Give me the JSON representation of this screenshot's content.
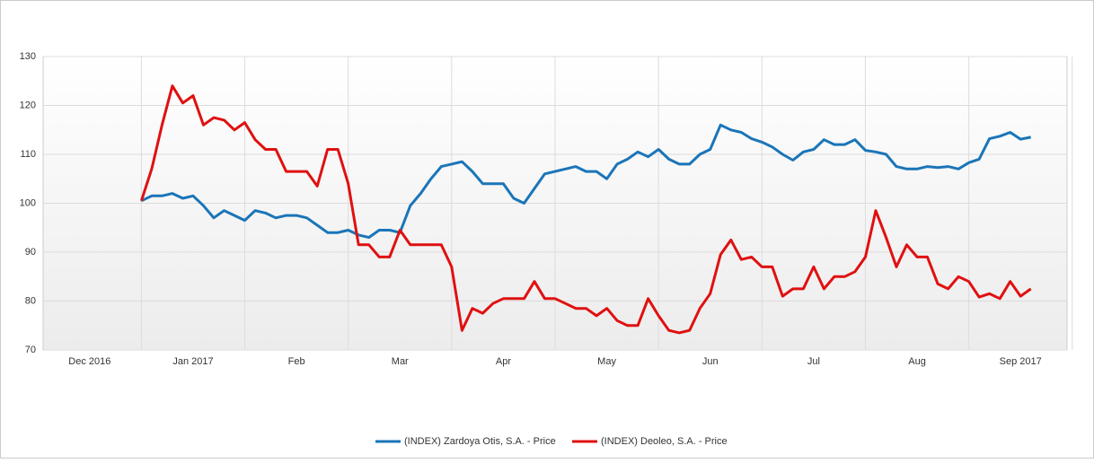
{
  "chart_data": {
    "type": "line",
    "categories": [
      null,
      null,
      null,
      null,
      "Dec 2016",
      null,
      null,
      null,
      null,
      null,
      null,
      null,
      null,
      null,
      "Jan 2017",
      null,
      null,
      null,
      null,
      null,
      null,
      null,
      null,
      null,
      "Feb",
      null,
      null,
      null,
      null,
      null,
      null,
      null,
      null,
      null,
      "Mar",
      null,
      null,
      null,
      null,
      null,
      null,
      null,
      null,
      null,
      "Apr",
      null,
      null,
      null,
      null,
      null,
      null,
      null,
      null,
      null,
      "May",
      null,
      null,
      null,
      null,
      null,
      null,
      null,
      null,
      null,
      "Jun",
      null,
      null,
      null,
      null,
      null,
      null,
      null,
      null,
      null,
      "Jul",
      null,
      null,
      null,
      null,
      null,
      null,
      null,
      null,
      null,
      "Aug",
      null,
      null,
      null,
      null,
      null,
      null,
      null,
      null,
      null,
      "Sep 2017",
      null,
      null,
      null,
      null
    ],
    "series": [
      {
        "name": "(INDEX) Zardoya Otis, S.A. - Price",
        "color": "#1a75b8",
        "values": [
          null,
          null,
          null,
          null,
          null,
          null,
          null,
          null,
          null,
          100.5,
          101.5,
          101.5,
          102,
          101,
          101.5,
          99.5,
          97,
          98.5,
          97.5,
          96.5,
          98.5,
          98,
          97,
          97.5,
          97.5,
          97,
          95.5,
          94,
          94,
          94.5,
          93.5,
          93,
          94.5,
          94.5,
          94,
          99.5,
          102,
          105,
          107.5,
          108,
          108.5,
          106.5,
          104,
          104,
          104,
          101,
          100,
          103,
          106,
          106.5,
          107,
          107.5,
          106.5,
          106.5,
          105,
          108,
          109,
          110.5,
          109.5,
          111,
          109,
          108,
          108,
          110,
          111,
          116,
          115,
          114.5,
          113.2,
          112.5,
          111.5,
          110,
          108.8,
          110.5,
          111,
          113,
          112,
          112,
          113,
          110.8,
          110.5,
          110,
          107.5,
          107,
          107,
          107.5,
          107.3,
          107.5,
          107,
          108.3,
          109,
          113.2,
          113.7,
          114.5,
          113.1,
          113.5,
          null,
          null,
          null
        ]
      },
      {
        "name": "(INDEX) Deoleo, S.A. - Price",
        "color": "#e01010",
        "values": [
          null,
          null,
          null,
          null,
          null,
          null,
          null,
          null,
          null,
          100.5,
          107,
          116,
          124,
          120.5,
          122,
          116,
          117.5,
          117,
          115,
          116.5,
          113,
          111,
          111,
          106.5,
          106.5,
          106.5,
          103.5,
          111,
          111,
          104,
          91.5,
          91.5,
          89,
          89,
          94.5,
          91.5,
          91.5,
          91.5,
          91.5,
          87,
          74,
          78.5,
          77.5,
          79.5,
          80.5,
          80.5,
          80.5,
          84,
          80.5,
          80.5,
          79.5,
          78.5,
          78.5,
          77,
          78.5,
          76,
          75,
          75,
          80.5,
          77,
          74,
          73.5,
          74,
          78.5,
          81.5,
          89.5,
          92.5,
          88.5,
          89,
          87,
          87,
          81,
          82.5,
          82.5,
          87,
          82.5,
          85,
          85,
          86,
          89,
          98.5,
          93,
          87,
          91.5,
          89,
          89,
          83.5,
          82.5,
          85,
          84,
          80.8,
          81.5,
          80.5,
          84,
          81,
          82.5,
          null,
          null,
          null
        ]
      }
    ],
    "ylim": [
      70,
      130
    ],
    "yticks": [
      70,
      80,
      90,
      100,
      110,
      120,
      130
    ],
    "grid": true,
    "legend": "bottom"
  }
}
